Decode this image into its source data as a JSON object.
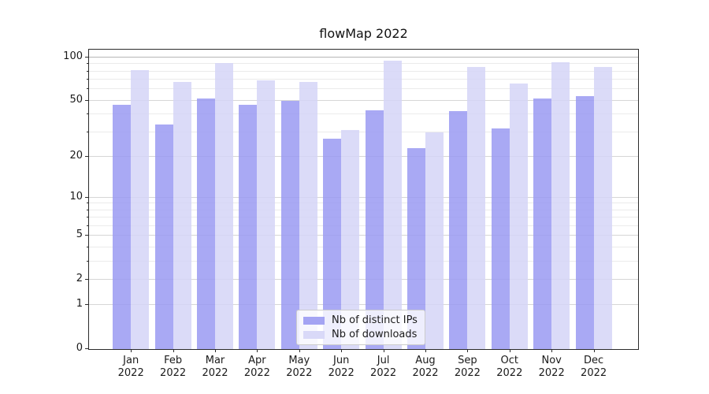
{
  "title": "flowMap 2022",
  "chart_data": {
    "type": "bar",
    "title": "flowMap 2022",
    "categories": [
      "Jan 2022",
      "Feb 2022",
      "Mar 2022",
      "Apr 2022",
      "May 2022",
      "Jun 2022",
      "Jul 2022",
      "Aug 2022",
      "Sep 2022",
      "Oct 2022",
      "Nov 2022",
      "Dec 2022"
    ],
    "series": [
      {
        "name": "Nb of distinct IPs",
        "color": "#9a9af2",
        "values": [
          47,
          34,
          52,
          47,
          50,
          27,
          43,
          23,
          42,
          32,
          52,
          54
        ]
      },
      {
        "name": "Nb of downloads",
        "color": "#d5d5f7",
        "values": [
          82,
          68,
          92,
          69,
          68,
          31,
          95,
          30,
          86,
          66,
          93,
          86
        ]
      }
    ],
    "xlabel": "",
    "ylabel": "",
    "yscale": "log1p",
    "ylim": [
      0,
      112
    ],
    "y_major_ticks": [
      0,
      1,
      2,
      5,
      10,
      20,
      50,
      100
    ],
    "y_minor_gridlines": [
      3,
      4,
      6,
      7,
      8,
      9,
      30,
      40,
      60,
      70,
      80,
      90
    ],
    "grid": "both",
    "legend_position": "lower center"
  },
  "colors": {
    "grid_major": "#d6d6d6",
    "grid_minor": "#ebebeb",
    "grid_top_line": "#b5b5b5",
    "axis": "#2b2b2b",
    "text": "#1a1a1a",
    "legend_border": "#cccccc"
  }
}
